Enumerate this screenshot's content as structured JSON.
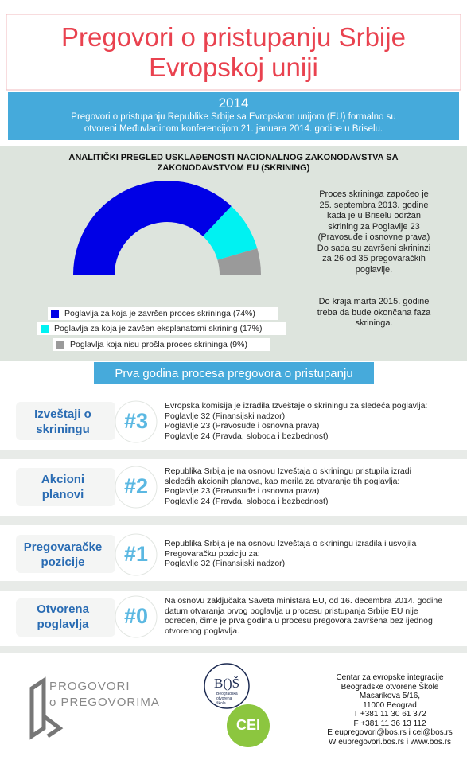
{
  "header": {
    "title": [
      "Pregovori o pristupanju Srbije",
      "Evropskoj uniji"
    ],
    "year": "2014",
    "intro": [
      "Pregovori o pristupanju Republike Srbije sa Evropskom unijom (EU) formalno su",
      "otvoreni Međuvladinom konferencijom 21. januara 2014. godine u Briselu."
    ]
  },
  "chart_data": {
    "type": "pie",
    "title": [
      "ANALITIČKI PREGLED USKLAĐENOSTI NACIONALNOG ZAKONODAVSTVA SA",
      "ZAKONODAVSTVOM EU (SKRINING)"
    ],
    "categories": [
      "Poglavlja za koja je završen proces skrininga (74%)",
      "Poglavlja za koja je zavšen eksplanatorni skrining (17%)",
      "Poglavlja koja nisu prošla proces skrininga (9%)"
    ],
    "values": [
      74,
      17,
      9
    ],
    "colors": [
      "#0000e6",
      "#00f2f2",
      "#9a9a9a"
    ]
  },
  "notes": [
    [
      "Proces skrininga započeo je",
      "25. septembra 2013. godine",
      "kada je u Briselu održan",
      "skrining za Poglavlje 23",
      "(Pravosuđe i osnovne prava)",
      "Do sada su završeni skrininzi",
      "za 26 od 35 pregovaračkih",
      "poglavlje."
    ],
    [
      "Do kraja marta 2015. godine",
      "treba da bude okončana faza",
      "skrininga."
    ]
  ],
  "section_title": "Prva godina procesa pregovora o pristupanju",
  "steps": [
    {
      "label": [
        "Izveštaji o",
        "skriningu"
      ],
      "number": "#3",
      "text": [
        "Evropska komisija je izradila Izveštaje o skriningu za sledeća poglavlja:",
        "Poglavlje 32 (Finansijski nadzor)",
        "Poglavlje 23 (Pravosuđe i osnovna prava)",
        "Poglavlje 24 (Pravda, sloboda i bezbednost)"
      ]
    },
    {
      "label": [
        "Akcioni",
        "planovi"
      ],
      "number": "#2",
      "text": [
        "Republika Srbija je na osnovu Izveštaja o skriningu pristupila izradi",
        "sledećih akcionih planova, kao merila za otvaranje tih poglavlja:",
        "Poglavlje 23 (Pravosuđe i osnovna prava)",
        "Poglavlje 24 (Pravda, sloboda i bezbednost)"
      ]
    },
    {
      "label": [
        "Pregovaračke",
        "pozicije"
      ],
      "number": "#1",
      "text": [
        "Republika Srbija je na osnovu Izveštaja o skriningu izradila i usvojila",
        "Pregovaračku poziciju za:",
        "Poglavlje 32 (Finansijski nadzor)"
      ]
    },
    {
      "label": [
        "Otvorena",
        "poglavlja"
      ],
      "number": "#0",
      "text": [
        "Na osnovu zaključaka Saveta ministara EU, od 16. decembra 2014. godine",
        "datum otvaranja prvog poglavlja u procesu pristupanja Srbije EU nije",
        "određen, čime je prva godina u procesu pregovora završena bez ijednog",
        "otvorenog poglavlja."
      ]
    }
  ],
  "footer": {
    "logo": [
      "PROGOVORI",
      "o PREGOVORIMA"
    ],
    "bos": "B()Š",
    "bos_sub": [
      "Beogradska",
      "otvorena",
      "škola"
    ],
    "cei": "CEI",
    "contact": [
      "Centar za evropske integracije",
      "Beogradske otvorene Škole",
      "Masarikova 5/16,",
      "11000 Beograd",
      "T  +381 11 30 61 372",
      "F  +381 11 36 13 112",
      "E eupregovori@bos.rs i cei@bos.rs",
      "W eupregovori.bos.rs i www.bos.rs"
    ]
  }
}
